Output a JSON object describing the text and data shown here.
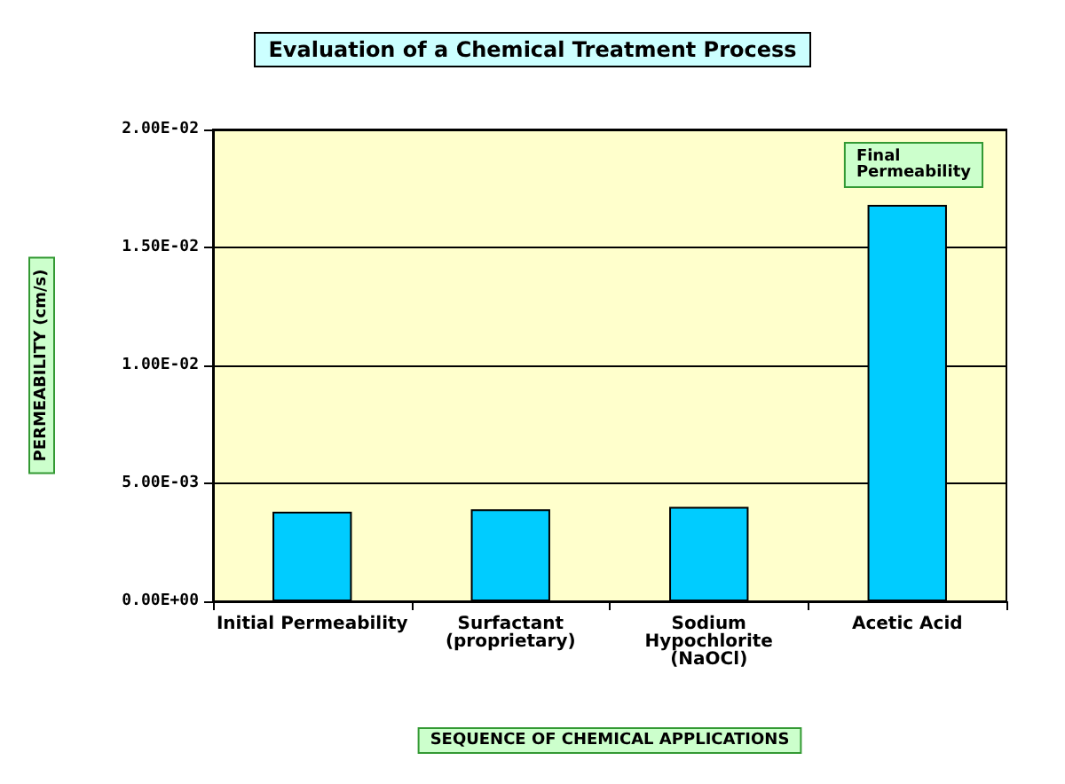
{
  "chart_data": {
    "type": "bar",
    "title": "Evaluation of a Chemical Treatment Process",
    "xlabel": "SEQUENCE OF CHEMICAL APPLICATIONS",
    "ylabel": "PERMEABILITY (cm/s)",
    "categories": [
      "Initial Permeability",
      "Surfactant\n(proprietary)",
      "Sodium\nHypochlorite\n(NaOCl)",
      "Acetic Acid"
    ],
    "values": [
      0.0038,
      0.0039,
      0.004,
      0.0168
    ],
    "color": "#00ccff",
    "ylim": [
      0,
      0.02
    ],
    "yticks": [
      {
        "value": 0,
        "label": "0.00E+00"
      },
      {
        "value": 0.005,
        "label": "5.00E-03"
      },
      {
        "value": 0.01,
        "label": "1.00E-02"
      },
      {
        "value": 0.015,
        "label": "1.50E-02"
      },
      {
        "value": 0.02,
        "label": "2.00E-02"
      }
    ],
    "grid": "y",
    "annotations": [
      "Final\nPermeability"
    ]
  }
}
